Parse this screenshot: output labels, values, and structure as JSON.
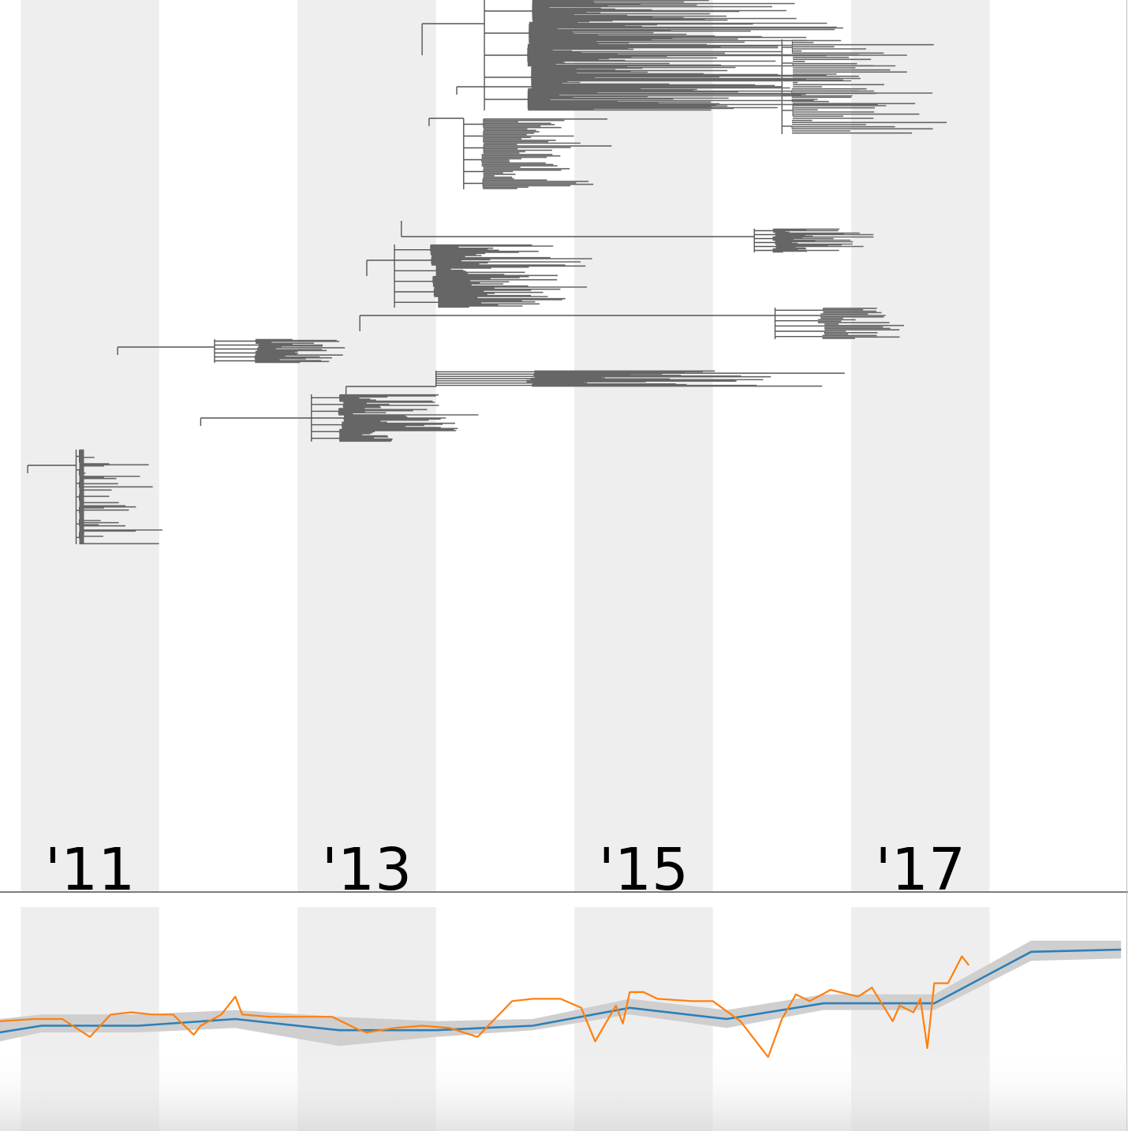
{
  "chart_data": [
    {
      "type": "tree",
      "x_axis": {
        "unit": "year",
        "range": [
          2010.35,
          2018.5
        ],
        "shaded_year_bands": [
          [
            2010.5,
            2011.5
          ],
          [
            2012.5,
            2013.5
          ],
          [
            2014.5,
            2015.5
          ],
          [
            2016.5,
            2017.5
          ]
        ],
        "tick_labels": [
          {
            "year": 2011,
            "label": "'11"
          },
          {
            "year": 2013,
            "label": "'13"
          },
          {
            "year": 2015,
            "label": "'15"
          },
          {
            "year": 2017,
            "label": "'17"
          }
        ]
      },
      "clades": [
        {
          "root": [
            2013.85,
            0.03
          ],
          "tips": 140,
          "span": [
            0.0,
            0.14
          ],
          "parent": [
            2013.4,
            0.07
          ],
          "tip_start": 2014.3,
          "tip_end": 2017.0
        },
        {
          "root": [
            2016.0,
            0.11
          ],
          "tips": 45,
          "span": [
            0.05,
            0.17
          ],
          "parent": [
            2013.65,
            0.12
          ],
          "tip_start": 2016.1,
          "tip_end": 2017.35
        },
        {
          "root": [
            2013.7,
            0.15
          ],
          "tips": 50,
          "span": [
            0.15,
            0.24
          ],
          "parent": [
            2013.45,
            0.16
          ],
          "tip_start": 2013.9,
          "tip_end": 2014.85
        },
        {
          "root": [
            2015.8,
            0.3
          ],
          "tips": 30,
          "span": [
            0.29,
            0.32
          ],
          "parent": [
            2013.25,
            0.28
          ],
          "tip_start": 2016.0,
          "tip_end": 2016.8
        },
        {
          "root": [
            2013.2,
            0.33
          ],
          "tips": 60,
          "span": [
            0.31,
            0.39
          ],
          "parent": [
            2013.0,
            0.35
          ],
          "tip_start": 2013.6,
          "tip_end": 2014.7
        },
        {
          "root": [
            2015.95,
            0.4
          ],
          "tips": 22,
          "span": [
            0.39,
            0.43
          ],
          "parent": [
            2012.95,
            0.42
          ],
          "tip_start": 2016.4,
          "tip_end": 2016.95
        },
        {
          "root": [
            2011.9,
            0.44
          ],
          "tips": 26,
          "span": [
            0.43,
            0.46
          ],
          "parent": [
            2011.2,
            0.45
          ],
          "tip_start": 2012.3,
          "tip_end": 2012.9
        },
        {
          "root": [
            2013.5,
            0.49
          ],
          "tips": 22,
          "span": [
            0.47,
            0.49
          ],
          "parent": [
            2012.85,
            0.51
          ],
          "tip_start": 2014.5,
          "tip_end": 2016.7
        },
        {
          "root": [
            2012.6,
            0.53
          ],
          "tips": 45,
          "span": [
            0.5,
            0.56
          ],
          "parent": [
            2011.8,
            0.54
          ],
          "tip_start": 2012.9,
          "tip_end": 2014.0
        },
        {
          "root": [
            2010.9,
            0.59
          ],
          "tips": 90,
          "span": [
            0.57,
            0.69
          ],
          "parent": [
            2010.55,
            0.6
          ],
          "tip_start": 2010.4,
          "tip_end": 2011.6
        }
      ]
    },
    {
      "type": "line",
      "x_range": [
        2010.35,
        2018.5
      ],
      "y_range": [
        0,
        1
      ],
      "shaded_year_bands": [
        [
          2010.5,
          2011.5
        ],
        [
          2012.5,
          2013.5
        ],
        [
          2014.5,
          2015.5
        ],
        [
          2016.5,
          2017.5
        ]
      ],
      "series": [
        {
          "color": "#2c7fb8",
          "band_color": "#cfcfcf",
          "x": [
            2010.35,
            2010.65,
            2011.35,
            2012.05,
            2012.8,
            2013.5,
            2014.2,
            2014.9,
            2015.6,
            2016.3,
            2016.95,
            2017.1,
            2017.8,
            2018.45
          ],
          "y": [
            0.44,
            0.47,
            0.47,
            0.5,
            0.45,
            0.45,
            0.47,
            0.55,
            0.5,
            0.57,
            0.57,
            0.57,
            0.8,
            0.81
          ],
          "band_low": [
            0.4,
            0.44,
            0.44,
            0.46,
            0.38,
            0.42,
            0.45,
            0.52,
            0.46,
            0.54,
            0.54,
            0.54,
            0.76,
            0.77
          ],
          "band_high": [
            0.5,
            0.52,
            0.52,
            0.54,
            0.51,
            0.49,
            0.5,
            0.59,
            0.54,
            0.61,
            0.61,
            0.61,
            0.85,
            0.85
          ]
        },
        {
          "color": "#ff7f0e",
          "x": [
            2010.35,
            2010.6,
            2010.8,
            2011.0,
            2011.15,
            2011.3,
            2011.45,
            2011.6,
            2011.75,
            2011.8,
            2011.95,
            2012.05,
            2012.1,
            2012.3,
            2012.5,
            2012.75,
            2012.95,
            2013.0,
            2013.2,
            2013.4,
            2013.6,
            2013.8,
            2014.05,
            2014.2,
            2014.4,
            2014.55,
            2014.65,
            2014.8,
            2014.85,
            2014.9,
            2015.0,
            2015.1,
            2015.35,
            2015.5,
            2015.7,
            2015.9,
            2016.0,
            2016.1,
            2016.2,
            2016.35,
            2016.55,
            2016.65,
            2016.8,
            2016.85,
            2016.95,
            2017.0,
            2017.05,
            2017.1,
            2017.2,
            2017.3,
            2017.35
          ],
          "y": [
            0.49,
            0.5,
            0.5,
            0.42,
            0.52,
            0.53,
            0.52,
            0.52,
            0.43,
            0.47,
            0.52,
            0.6,
            0.52,
            0.51,
            0.51,
            0.51,
            0.45,
            0.44,
            0.46,
            0.47,
            0.46,
            0.42,
            0.58,
            0.59,
            0.59,
            0.55,
            0.4,
            0.56,
            0.48,
            0.62,
            0.62,
            0.59,
            0.58,
            0.58,
            0.49,
            0.33,
            0.5,
            0.61,
            0.58,
            0.63,
            0.6,
            0.64,
            0.49,
            0.56,
            0.53,
            0.59,
            0.37,
            0.66,
            0.66,
            0.78,
            0.74
          ]
        }
      ]
    }
  ]
}
